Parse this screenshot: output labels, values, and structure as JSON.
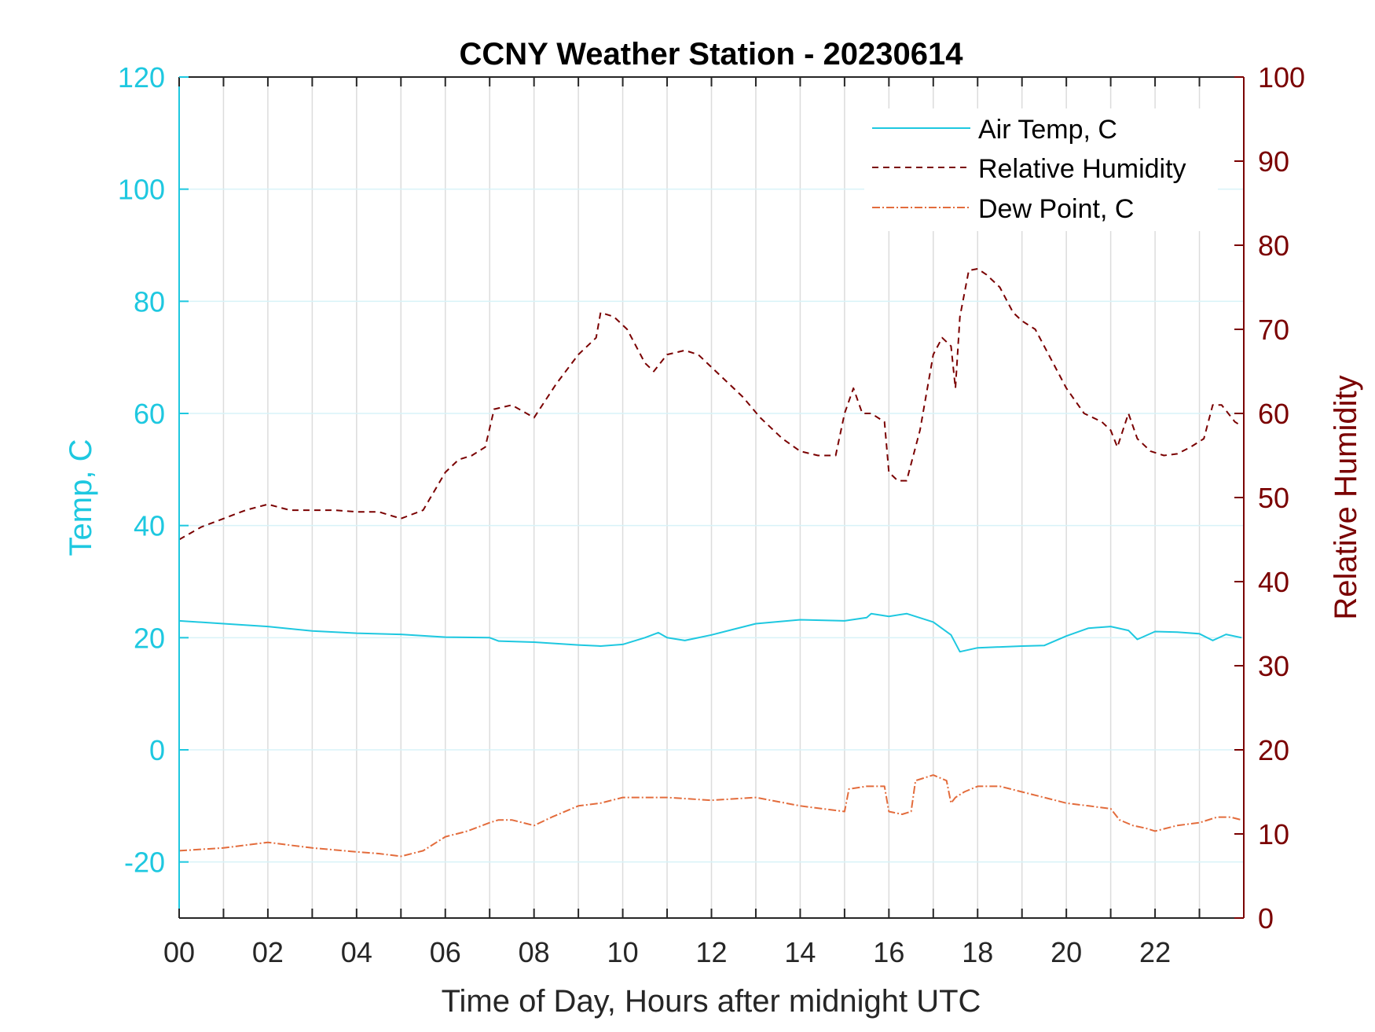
{
  "chart_data": {
    "type": "line",
    "title": "CCNY Weather Station - 20230614",
    "xlabel": "Time of Day, Hours after midnight UTC",
    "ylabel_left": "Temp, C",
    "ylabel_right": "Relative Humidity",
    "xlim": [
      0,
      24
    ],
    "ylim_left": [
      -30,
      120
    ],
    "ylim_right": [
      0,
      100
    ],
    "x_tick_values": [
      0,
      2,
      4,
      6,
      8,
      10,
      12,
      14,
      16,
      18,
      20,
      22
    ],
    "x_tick_labels": [
      "00",
      "02",
      "04",
      "06",
      "08",
      "10",
      "12",
      "14",
      "16",
      "18",
      "20",
      "22"
    ],
    "y_left_tick_values": [
      -20,
      0,
      20,
      40,
      60,
      80,
      100,
      120
    ],
    "y_left_tick_labels": [
      "-20",
      "0",
      "20",
      "40",
      "60",
      "80",
      "100",
      "120"
    ],
    "y_right_tick_values": [
      0,
      10,
      20,
      30,
      40,
      50,
      60,
      70,
      80,
      90,
      100
    ],
    "y_right_tick_labels": [
      "0",
      "10",
      "20",
      "30",
      "40",
      "50",
      "60",
      "70",
      "80",
      "90",
      "100"
    ],
    "grid": true,
    "legend_position": "top-right",
    "series": [
      {
        "name": "Air Temp, C",
        "axis": "left",
        "color": "#1ec8e0",
        "style": "solid",
        "x": [
          0,
          1,
          2,
          3,
          4,
          5,
          6,
          7,
          7.2,
          8,
          9,
          9.5,
          10,
          10.5,
          10.8,
          11,
          11.4,
          12,
          12.5,
          13,
          14,
          15,
          15.5,
          15.6,
          16,
          16.4,
          17,
          17.4,
          17.6,
          18,
          19,
          19.5,
          20,
          20.5,
          21,
          21.4,
          21.6,
          22,
          22.5,
          23,
          23.3,
          23.6,
          23.95
        ],
        "y": [
          23,
          22.5,
          22,
          21.2,
          20.8,
          20.6,
          20.1,
          20,
          19.4,
          19.2,
          18.7,
          18.5,
          18.8,
          20,
          20.9,
          20,
          19.5,
          20.5,
          21.5,
          22.5,
          23.2,
          23,
          23.6,
          24.3,
          23.8,
          24.3,
          22.8,
          20.5,
          17.5,
          18.2,
          18.5,
          18.6,
          20.3,
          21.7,
          22,
          21.3,
          19.7,
          21.1,
          21,
          20.7,
          19.5,
          20.6,
          20
        ]
      },
      {
        "name": "Relative Humidity",
        "axis": "right",
        "color": "#7a0000",
        "style": "dashed",
        "x": [
          0,
          0.5,
          1,
          1.5,
          2,
          2.5,
          3,
          3.5,
          4,
          4.5,
          5,
          5.5,
          6,
          6.3,
          6.6,
          6.9,
          7.1,
          7.5,
          8,
          8.5,
          9,
          9.4,
          9.5,
          9.8,
          10.1,
          10.5,
          10.7,
          11,
          11.4,
          11.7,
          12.2,
          12.7,
          13.1,
          13.6,
          14,
          14.4,
          14.8,
          15,
          15.2,
          15.4,
          15.6,
          15.9,
          16,
          16.2,
          16.4,
          16.7,
          17,
          17.2,
          17.4,
          17.5,
          17.6,
          17.8,
          18,
          18.2,
          18.5,
          18.8,
          19,
          19.3,
          19.6,
          20,
          20.4,
          20.8,
          21,
          21.15,
          21.4,
          21.6,
          21.9,
          22.2,
          22.5,
          22.8,
          23.1,
          23.3,
          23.5,
          23.8,
          23.95
        ],
        "y": [
          45,
          46.5,
          47.5,
          48.5,
          49.2,
          48.5,
          48.5,
          48.5,
          48.3,
          48.3,
          47.5,
          48.5,
          53,
          54.5,
          55,
          56,
          60.5,
          61,
          59.5,
          63.5,
          67,
          69,
          72,
          71.5,
          70,
          66,
          65,
          67,
          67.5,
          67,
          64.5,
          62,
          59.5,
          57,
          55.5,
          55,
          55,
          60,
          63,
          60,
          60,
          59,
          53,
          52,
          52,
          58,
          67,
          69,
          68,
          63,
          71.5,
          77,
          77.2,
          76.5,
          75,
          72,
          71,
          70,
          67,
          63,
          60,
          59,
          58,
          56,
          60,
          57,
          55.5,
          55,
          55.2,
          56,
          57,
          61,
          61,
          59,
          58.5
        ]
      },
      {
        "name": "Dew Point, C",
        "axis": "left",
        "color": "#e36c3c",
        "style": "dashdot",
        "x": [
          0,
          1,
          2,
          2.5,
          3,
          4,
          4.5,
          5,
          5.5,
          6,
          6.5,
          7,
          7.2,
          7.5,
          8,
          8.4,
          9,
          9.5,
          10,
          11,
          12,
          13,
          14,
          14.5,
          15,
          15.1,
          15.5,
          15.9,
          16,
          16.3,
          16.5,
          16.6,
          17,
          17.3,
          17.4,
          17.5,
          17.7,
          18,
          18.5,
          19,
          19.5,
          20,
          20.5,
          21,
          21.2,
          21.5,
          21.8,
          22,
          22.5,
          23,
          23.4,
          23.7,
          23.95
        ],
        "y": [
          -18,
          -17.5,
          -16.5,
          -17,
          -17.5,
          -18.2,
          -18.5,
          -19,
          -18,
          -15.5,
          -14.5,
          -13,
          -12.5,
          -12.5,
          -13.5,
          -12,
          -10,
          -9.5,
          -8.5,
          -8.5,
          -9,
          -8.5,
          -10,
          -10.5,
          -11,
          -7,
          -6.5,
          -6.5,
          -11,
          -11.5,
          -11,
          -5.5,
          -4.5,
          -5.5,
          -9.5,
          -8.5,
          -7.5,
          -6.5,
          -6.5,
          -7.5,
          -8.5,
          -9.5,
          -10,
          -10.5,
          -12.5,
          -13.5,
          -14,
          -14.5,
          -13.5,
          -13,
          -12,
          -12,
          -12.5
        ]
      }
    ]
  }
}
